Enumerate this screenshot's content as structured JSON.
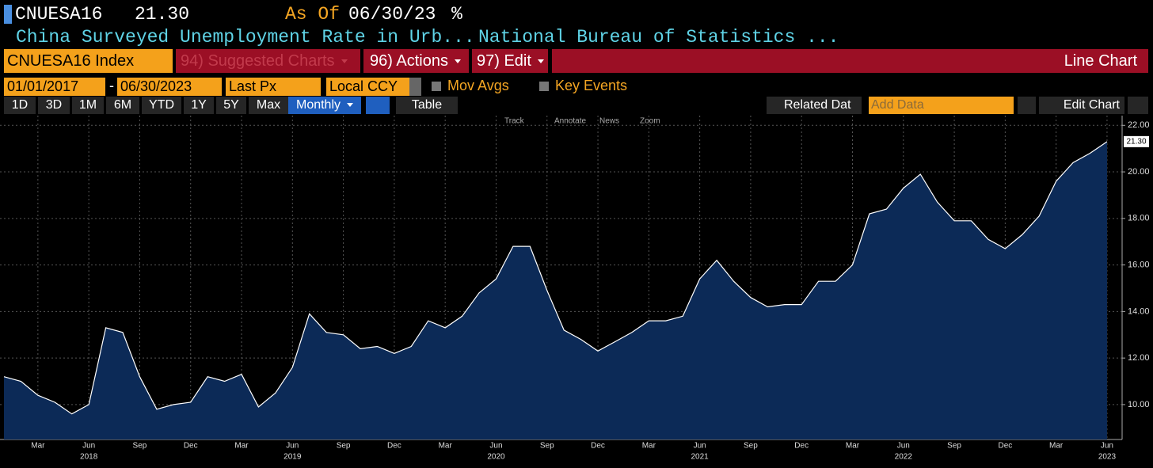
{
  "header": {
    "ticker": "CNUESA16",
    "last": "21.30",
    "as_of_label": "As Of",
    "as_of": "06/30/23",
    "unit": "%",
    "description": "China Surveyed Unemployment Rate in Urb...",
    "source": "National Bureau of Statistics ..."
  },
  "toolbar": {
    "security": "CNUESA16 Index",
    "suggested": "94) Suggested Charts",
    "actions": "96) Actions",
    "edit": "97) Edit",
    "chart_type": "Line Chart"
  },
  "settings": {
    "start_date": "01/01/2017",
    "date_separator": "-",
    "end_date": "06/30/2023",
    "field": "Last Px",
    "currency": "Local CCY",
    "mov_avgs": "Mov Avgs",
    "key_events": "Key Events"
  },
  "ranges": [
    "1D",
    "3D",
    "1M",
    "6M",
    "YTD",
    "1Y",
    "5Y",
    "Max"
  ],
  "period": "Monthly",
  "table": "Table",
  "related": "Related Dat",
  "add_data": "Add Data",
  "edit_chart": "Edit Chart",
  "chart_tools": [
    "Track",
    "Annotate",
    "News",
    "Zoom"
  ],
  "chart_data": {
    "type": "area",
    "color": "#0c2a57",
    "line_color": "#ffffff",
    "grid": true,
    "categories": [
      null,
      null,
      "Mar",
      null,
      null,
      "Jun",
      null,
      null,
      "Sep",
      null,
      null,
      "Dec",
      null,
      null,
      "Mar",
      null,
      null,
      "Jun",
      null,
      null,
      "Sep",
      null,
      null,
      "Dec",
      null,
      null,
      "Mar",
      null,
      null,
      "Jun",
      null,
      null,
      "Sep",
      null,
      null,
      "Dec",
      null,
      null,
      "Mar",
      null,
      null,
      "Jun",
      null,
      null,
      "Sep",
      null,
      null,
      "Dec",
      null,
      null,
      "Mar",
      null,
      null,
      "Jun",
      null,
      null,
      "Sep",
      null,
      null,
      "Dec",
      null,
      null,
      "Mar",
      null,
      null,
      "Jun"
    ],
    "years": [
      "2018",
      "2019",
      "2020",
      "2021",
      "2022",
      "2023"
    ],
    "values": [
      11.2,
      11.0,
      10.4,
      10.1,
      9.6,
      10.0,
      13.3,
      13.1,
      11.2,
      9.8,
      10.0,
      10.1,
      11.2,
      11.0,
      11.3,
      9.9,
      10.5,
      11.6,
      13.9,
      13.1,
      13.0,
      12.4,
      12.5,
      12.2,
      12.5,
      13.6,
      13.3,
      13.8,
      14.8,
      15.4,
      16.8,
      16.8,
      14.9,
      13.2,
      12.8,
      12.3,
      12.7,
      13.1,
      13.6,
      13.6,
      13.8,
      15.4,
      16.2,
      15.3,
      14.6,
      14.2,
      14.3,
      14.3,
      15.3,
      15.3,
      16.0,
      18.2,
      18.4,
      19.3,
      19.9,
      18.7,
      17.9,
      17.9,
      17.1,
      16.7,
      17.3,
      18.1,
      19.6,
      20.4,
      20.8,
      21.3
    ],
    "value_labels": [
      null,
      null,
      null,
      null,
      null,
      null,
      null,
      null,
      null,
      null,
      null,
      null,
      null,
      null,
      null,
      null,
      null,
      null,
      null,
      null,
      null,
      null,
      null,
      null,
      null,
      null,
      null,
      null,
      null,
      null,
      null,
      null,
      null,
      null,
      null,
      null,
      null,
      null,
      null,
      null,
      null,
      null,
      null,
      null,
      null,
      null,
      null,
      null,
      null,
      null,
      null,
      null,
      null,
      null,
      null,
      null,
      null,
      null,
      null,
      null,
      null,
      null,
      null,
      null,
      null,
      "21.30"
    ],
    "ylim": [
      8.5,
      22.35
    ],
    "yticks": [
      {
        "value": 10,
        "label": "10.00"
      },
      {
        "value": 12,
        "label": "12.00"
      },
      {
        "value": 14,
        "label": "14.00"
      },
      {
        "value": 16,
        "label": "16.00"
      },
      {
        "value": 18,
        "label": "18.00"
      },
      {
        "value": 20,
        "label": "20.00"
      },
      {
        "value": 22,
        "label": "22.00"
      }
    ]
  }
}
